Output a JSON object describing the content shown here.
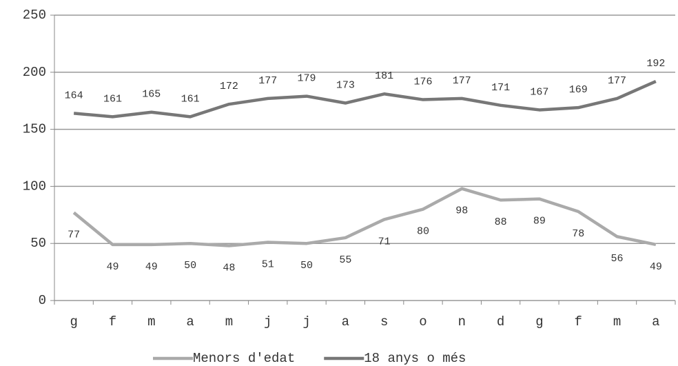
{
  "chart_data": {
    "type": "line",
    "categories": [
      "g",
      "f",
      "m",
      "a",
      "m",
      "j",
      "j",
      "a",
      "s",
      "o",
      "n",
      "d",
      "g",
      "f",
      "m",
      "a"
    ],
    "series": [
      {
        "name": "Menors d'edat",
        "color": "#aaaaaa",
        "values": [
          77,
          49,
          49,
          50,
          48,
          51,
          50,
          55,
          71,
          80,
          98,
          88,
          89,
          78,
          56,
          49
        ]
      },
      {
        "name": "18 anys o més",
        "color": "#777777",
        "values": [
          164,
          161,
          165,
          161,
          172,
          177,
          179,
          173,
          181,
          176,
          177,
          171,
          167,
          169,
          177,
          192
        ]
      }
    ],
    "ylim": [
      0,
      250
    ],
    "yticks": [
      0,
      50,
      100,
      150,
      200,
      250
    ],
    "grid": true,
    "legend": "bottom"
  }
}
